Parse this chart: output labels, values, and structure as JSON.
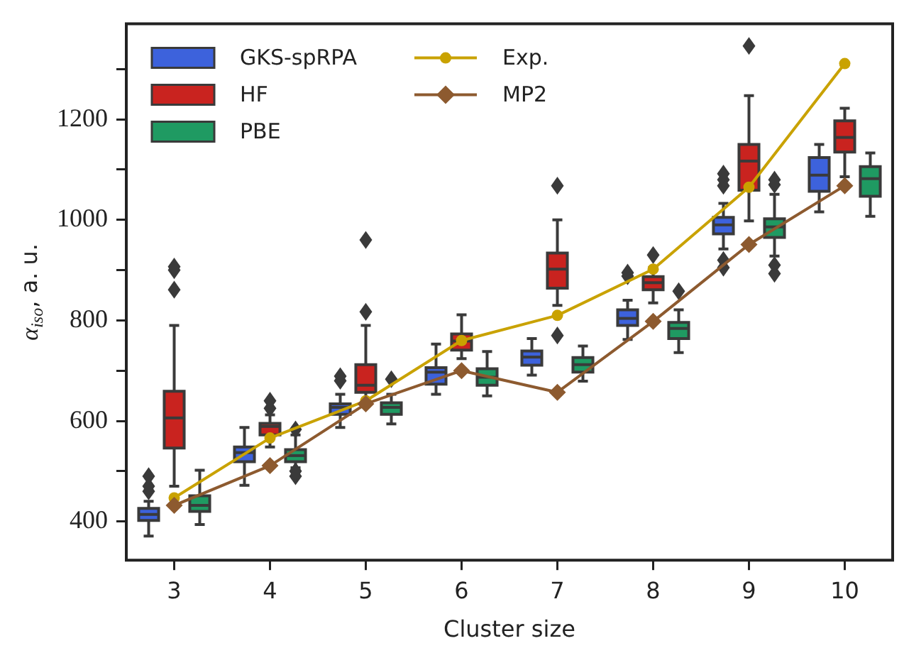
{
  "chart_data": {
    "type": "box",
    "xlabel": "Cluster size",
    "ylabel": "α$_{iso}$, a. u.",
    "categories": [
      "3",
      "4",
      "5",
      "6",
      "7",
      "8",
      "9",
      "10"
    ],
    "ylim": [
      323,
      1390
    ],
    "yticks": [
      400,
      {
        "value": 500,
        "label": null
      },
      600,
      {
        "value": 700,
        "label": null
      },
      800,
      {
        "value": 900,
        "label": null
      },
      1000,
      {
        "value": 1100,
        "label": null
      },
      1200,
      {
        "value": 1300,
        "label": null
      }
    ],
    "legend": "top left",
    "series": [
      {
        "name": "GKS-spRPA",
        "color": "#3d62dc",
        "boxes": [
          {
            "low": 371,
            "q1": 402,
            "median": 414,
            "q3": 426,
            "high": 440,
            "outliers": [
              460,
              470,
              490
            ]
          },
          {
            "low": 472,
            "q1": 519,
            "median": 537,
            "q3": 548,
            "high": 587
          },
          {
            "low": 587,
            "q1": 613,
            "median": 627,
            "q3": 634,
            "high": 653,
            "outliers": [
              680,
              689
            ]
          },
          {
            "low": 653,
            "q1": 673,
            "median": 697,
            "q3": 706,
            "high": 753
          },
          {
            "low": 691,
            "q1": 711,
            "median": 727,
            "q3": 739,
            "high": 764
          },
          {
            "low": 762,
            "q1": 790,
            "median": 804,
            "q3": 821,
            "high": 840,
            "outliers": [
              888,
              895
            ]
          },
          {
            "low": 942,
            "q1": 972,
            "median": 990,
            "q3": 1005,
            "high": 1033,
            "outliers": [
              905,
              920,
              1068,
              1080,
              1092
            ]
          },
          {
            "low": 1016,
            "q1": 1057,
            "median": 1089,
            "q3": 1124,
            "high": 1150
          }
        ]
      },
      {
        "name": "HF",
        "color": "#c9231f",
        "boxes": [
          {
            "low": 470,
            "q1": 546,
            "median": 606,
            "q3": 659,
            "high": 790,
            "outliers": [
              861,
              900,
              907
            ]
          },
          {
            "low": 548,
            "q1": 572,
            "median": 589,
            "q3": 595,
            "high": 612,
            "outliers": [
              625,
              640
            ]
          },
          {
            "low": 640,
            "q1": 657,
            "median": 671,
            "q3": 712,
            "high": 790,
            "outliers": [
              817,
              960
            ]
          },
          {
            "low": 724,
            "q1": 741,
            "median": 759,
            "q3": 773,
            "high": 811
          },
          {
            "low": 830,
            "q1": 864,
            "median": 902,
            "q3": 934,
            "high": 1000,
            "outliers": [
              770,
              1068
            ]
          },
          {
            "low": 835,
            "q1": 861,
            "median": 875,
            "q3": 887,
            "high": 905,
            "outliers": [
              930
            ]
          },
          {
            "low": 998,
            "q1": 1059,
            "median": 1117,
            "q3": 1150,
            "high": 1247,
            "outliers": [
              1346
            ]
          },
          {
            "low": 1086,
            "q1": 1135,
            "median": 1164,
            "q3": 1197,
            "high": 1222
          }
        ]
      },
      {
        "name": "PBE",
        "color": "#1f9a62",
        "boxes": [
          {
            "low": 394,
            "q1": 420,
            "median": 432,
            "q3": 451,
            "high": 502
          },
          {
            "low": 507,
            "q1": 519,
            "median": 531,
            "q3": 543,
            "high": 572,
            "outliers": [
              490,
              500,
              583
            ]
          },
          {
            "low": 594,
            "q1": 613,
            "median": 627,
            "q3": 636,
            "high": 653,
            "outliers": [
              683
            ]
          },
          {
            "low": 650,
            "q1": 671,
            "median": 687,
            "q3": 704,
            "high": 738
          },
          {
            "low": 679,
            "q1": 697,
            "median": 712,
            "q3": 726,
            "high": 749
          },
          {
            "low": 736,
            "q1": 764,
            "median": 784,
            "q3": 796,
            "high": 821,
            "outliers": [
              858
            ]
          },
          {
            "low": 928,
            "q1": 965,
            "median": 986,
            "q3": 1002,
            "high": 1051,
            "outliers": [
              893,
              910,
              1070,
              1080
            ]
          },
          {
            "low": 1007,
            "q1": 1047,
            "median": 1082,
            "q3": 1106,
            "high": 1133
          }
        ]
      },
      {
        "name": "Exp.",
        "type": "line",
        "color": "#c9a200",
        "marker": "circle",
        "values": [
          447,
          566,
          640,
          760,
          810,
          902,
          1065,
          1311
        ]
      },
      {
        "name": "MP2",
        "type": "line",
        "color": "#8d5a2f",
        "marker": "diamond",
        "values": [
          432,
          511,
          634,
          700,
          657,
          798,
          951,
          1068
        ]
      }
    ]
  }
}
